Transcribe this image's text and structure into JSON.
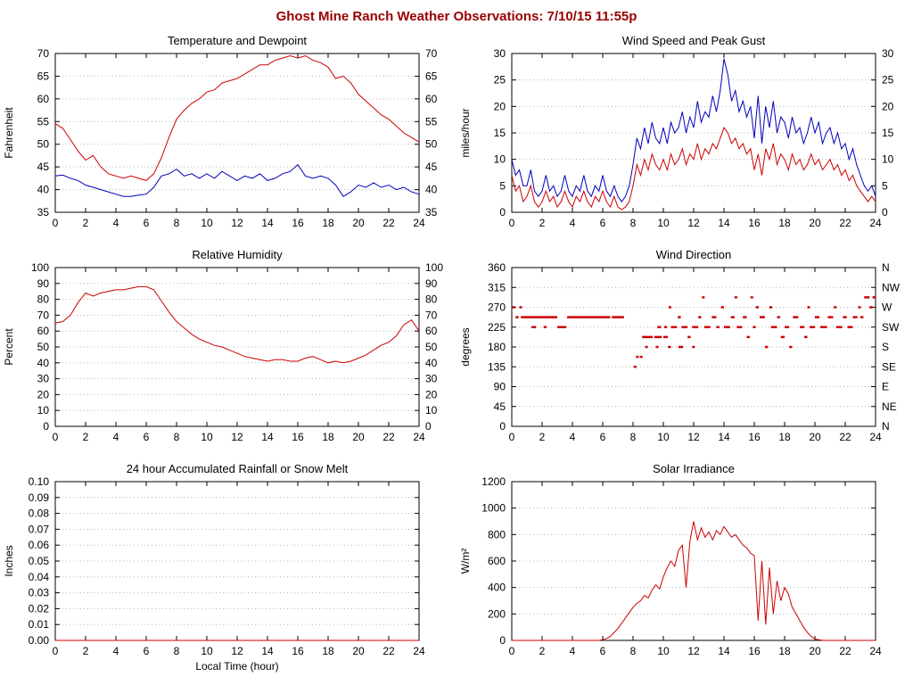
{
  "page": {
    "title": "Ghost Mine Ranch Weather Observations: 7/10/15 11:55p"
  },
  "colors": {
    "series_red": "#cc0000",
    "series_blue": "#0000bb",
    "title_red": "#990000",
    "grid": "#b5b5b5",
    "axis": "#000000",
    "text": "#000000"
  },
  "x_axis": {
    "min": 0,
    "max": 24,
    "tick_step": 2,
    "label": "Local Time (hour)"
  },
  "chart_data": [
    {
      "id": "temperature-dewpoint",
      "type": "line",
      "title": "Temperature and Dewpoint",
      "ylabel": "Fahrenheit",
      "ylim": [
        35,
        70
      ],
      "ytick_step": 5,
      "ytick_decimals": 0,
      "mirror_right_labels": true,
      "show_xlabel": false,
      "series": [
        {
          "name": "temperature",
          "color": "red",
          "x_start": 0,
          "x_step": 0.5,
          "values": [
            54.5,
            53.5,
            51,
            48.5,
            46.5,
            47.5,
            45,
            43.5,
            43,
            42.5,
            43,
            42.5,
            42,
            43.5,
            47,
            51.5,
            55.5,
            57.5,
            59,
            60,
            61.5,
            62,
            63.5,
            64,
            64.5,
            65.5,
            66.5,
            67.5,
            67.5,
            68.5,
            69,
            69.5,
            69,
            69.5,
            68.5,
            68,
            67,
            64.5,
            65,
            63.5,
            61,
            59.5,
            58,
            56.5,
            55.5,
            54,
            52.5,
            51.5,
            50.5
          ]
        },
        {
          "name": "dewpoint",
          "color": "blue",
          "x_start": 0,
          "x_step": 0.5,
          "values": [
            43,
            43.2,
            42.5,
            42,
            41,
            40.5,
            40,
            39.5,
            39,
            38.5,
            38.5,
            38.8,
            39,
            40.5,
            43,
            43.5,
            44.5,
            43,
            43.5,
            42.5,
            43.5,
            42.5,
            44,
            43,
            42,
            43,
            42.5,
            43.5,
            42,
            42.5,
            43.5,
            44,
            45.5,
            43,
            42.5,
            43,
            42.5,
            41,
            38.5,
            39.5,
            41,
            40.5,
            41.5,
            40.5,
            41,
            40,
            40.5,
            39.5,
            39
          ]
        }
      ]
    },
    {
      "id": "wind-speed",
      "type": "line",
      "title": "Wind Speed and Peak Gust",
      "ylabel": "miles/hour",
      "ylim": [
        0,
        30
      ],
      "ytick_step": 5,
      "ytick_decimals": 0,
      "mirror_right_labels": true,
      "show_xlabel": false,
      "series": [
        {
          "name": "peak-gust",
          "color": "blue",
          "x_start": 0,
          "x_step": 0.25,
          "values": [
            10,
            7,
            8,
            5,
            5,
            8,
            4,
            3,
            4,
            7,
            4,
            5,
            3,
            4,
            7,
            4,
            3,
            5,
            4,
            7,
            4,
            3,
            5,
            4,
            7,
            4,
            3,
            5,
            3,
            2,
            3,
            5,
            9,
            14,
            12,
            16,
            13,
            17,
            14,
            13,
            16,
            13,
            17,
            15,
            16,
            19,
            15,
            18,
            16,
            21,
            17,
            19,
            18,
            22,
            19,
            23,
            29,
            26,
            21,
            23,
            19,
            21,
            18,
            20,
            14,
            22,
            13,
            20,
            16,
            21,
            15,
            18,
            17,
            14,
            18,
            15,
            16,
            13,
            15,
            18,
            15,
            17,
            13,
            15,
            16,
            13,
            15,
            12,
            13,
            10,
            12,
            9,
            7,
            5,
            4,
            5,
            3
          ]
        },
        {
          "name": "wind-speed",
          "color": "red",
          "x_start": 0,
          "x_step": 0.25,
          "values": [
            7,
            4,
            5,
            2,
            3,
            5,
            2,
            1,
            2,
            4,
            2,
            3,
            1,
            2,
            4,
            2,
            1,
            3,
            2,
            4,
            2,
            1,
            3,
            2,
            4,
            2,
            1,
            3,
            1,
            0.5,
            1,
            2,
            5,
            9,
            7,
            10,
            8,
            11,
            9,
            8,
            10,
            8,
            11,
            9,
            10,
            12,
            9,
            11,
            10,
            13,
            10,
            12,
            11,
            13,
            12,
            14,
            16,
            15,
            13,
            14,
            12,
            13,
            11,
            12,
            8,
            11,
            7,
            12,
            10,
            13,
            9,
            11,
            10,
            8,
            11,
            9,
            10,
            8,
            9,
            11,
            9,
            10,
            8,
            9,
            10,
            8,
            9,
            7,
            8,
            6,
            7,
            5,
            4,
            3,
            2,
            3,
            2
          ]
        }
      ]
    },
    {
      "id": "humidity",
      "type": "line",
      "title": "Relative Humidity",
      "ylabel": "Percent",
      "ylim": [
        0,
        100
      ],
      "ytick_step": 10,
      "ytick_decimals": 0,
      "mirror_right_labels": true,
      "show_xlabel": false,
      "series": [
        {
          "name": "relative-humidity",
          "color": "red",
          "x_start": 0,
          "x_step": 0.5,
          "values": [
            65,
            66,
            70,
            78,
            84,
            82,
            84,
            85,
            86,
            86,
            87,
            88,
            88,
            86,
            79,
            72,
            66,
            62,
            58,
            55,
            53,
            51,
            50,
            48,
            46,
            44,
            43,
            42,
            41,
            42,
            42,
            41,
            41,
            43,
            44,
            42,
            40,
            41,
            40,
            41,
            43,
            45,
            48,
            51,
            53,
            57,
            64,
            67,
            60
          ]
        }
      ]
    },
    {
      "id": "wind-direction",
      "type": "scatter",
      "title": "Wind Direction",
      "ylabel": "degrees",
      "ylim": [
        0,
        360
      ],
      "ytick_step": 45,
      "ytick_decimals": 0,
      "right_labels": [
        "N",
        "NE",
        "E",
        "SE",
        "S",
        "SW",
        "W",
        "NW",
        "N"
      ],
      "show_xlabel": false,
      "series": [
        {
          "name": "direction",
          "color": "red",
          "segments": [
            [
              0.0,
              0.2,
              270
            ],
            [
              0.25,
              0.45,
              247.5
            ],
            [
              0.5,
              0.6,
              270
            ],
            [
              0.6,
              3.0,
              247.5
            ],
            [
              1.3,
              1.6,
              225
            ],
            [
              2.1,
              2.3,
              225
            ],
            [
              3.0,
              3.6,
              225
            ],
            [
              3.65,
              6.5,
              247.5
            ],
            [
              6.6,
              7.4,
              247.5
            ],
            [
              8.05,
              8.15,
              135
            ],
            [
              8.2,
              8.35,
              157.5
            ],
            [
              8.45,
              8.6,
              157.5
            ],
            [
              8.6,
              9.3,
              202.5
            ],
            [
              8.8,
              8.9,
              180
            ],
            [
              9.4,
              9.9,
              202.5
            ],
            [
              9.5,
              9.6,
              180
            ],
            [
              9.6,
              9.85,
              225
            ],
            [
              10.0,
              10.3,
              202.5
            ],
            [
              10.05,
              10.25,
              225
            ],
            [
              10.3,
              10.5,
              180
            ],
            [
              10.35,
              10.45,
              270
            ],
            [
              10.5,
              10.9,
              225
            ],
            [
              10.95,
              11.15,
              247.5
            ],
            [
              11.0,
              11.3,
              180
            ],
            [
              11.2,
              11.6,
              225
            ],
            [
              11.6,
              11.8,
              202.5
            ],
            [
              11.9,
              12.0,
              180
            ],
            [
              11.9,
              12.3,
              225
            ],
            [
              12.3,
              12.5,
              247.5
            ],
            [
              12.55,
              12.65,
              292.5
            ],
            [
              12.7,
              13.1,
              225
            ],
            [
              13.2,
              13.5,
              247.5
            ],
            [
              13.5,
              13.7,
              225
            ],
            [
              13.8,
              14.0,
              270
            ],
            [
              14.0,
              14.4,
              225
            ],
            [
              14.45,
              14.7,
              247.5
            ],
            [
              14.7,
              14.8,
              292.5
            ],
            [
              14.85,
              15.2,
              225
            ],
            [
              15.25,
              15.5,
              247.5
            ],
            [
              15.5,
              15.7,
              202.5
            ],
            [
              15.75,
              15.85,
              292.5
            ],
            [
              15.9,
              16.1,
              225
            ],
            [
              16.1,
              16.3,
              270
            ],
            [
              16.35,
              16.7,
              247.5
            ],
            [
              16.7,
              16.9,
              180
            ],
            [
              17.0,
              17.1,
              270
            ],
            [
              17.1,
              17.5,
              225
            ],
            [
              17.5,
              17.7,
              247.5
            ],
            [
              17.75,
              18.0,
              202.5
            ],
            [
              18.0,
              18.3,
              225
            ],
            [
              18.3,
              18.5,
              180
            ],
            [
              18.55,
              18.9,
              247.5
            ],
            [
              19.0,
              19.3,
              225
            ],
            [
              19.3,
              19.5,
              202.5
            ],
            [
              19.5,
              19.6,
              270
            ],
            [
              19.65,
              20.0,
              225
            ],
            [
              20.0,
              20.3,
              247.5
            ],
            [
              20.35,
              20.8,
              225
            ],
            [
              20.85,
              21.2,
              247.5
            ],
            [
              21.25,
              21.35,
              270
            ],
            [
              21.4,
              21.8,
              225
            ],
            [
              21.85,
              22.1,
              247.5
            ],
            [
              22.15,
              22.5,
              225
            ],
            [
              22.5,
              22.8,
              247.5
            ],
            [
              22.85,
              23.0,
              270
            ],
            [
              23.0,
              23.2,
              247.5
            ],
            [
              23.25,
              23.6,
              292.5
            ],
            [
              23.6,
              23.8,
              270
            ],
            [
              23.8,
              24.0,
              292.5
            ]
          ]
        }
      ]
    },
    {
      "id": "rainfall",
      "type": "line",
      "title": "24 hour Accumulated Rainfall or Snow Melt",
      "ylabel": "Inches",
      "ylim": [
        0,
        0.1
      ],
      "ytick_step": 0.01,
      "ytick_decimals": 2,
      "show_xlabel": true,
      "series": [
        {
          "name": "rainfall",
          "color": "red",
          "x_start": 0,
          "x_step": 24,
          "values": [
            0,
            0
          ]
        }
      ]
    },
    {
      "id": "solar",
      "type": "line",
      "title": "Solar Irradiance",
      "ylabel": "W/m²",
      "ylim": [
        0,
        1200
      ],
      "ytick_step": 200,
      "ytick_decimals": 0,
      "show_xlabel": false,
      "series": [
        {
          "name": "irradiance",
          "color": "red",
          "x_start": 0,
          "x_step": 0.25,
          "values": [
            0,
            0,
            0,
            0,
            0,
            0,
            0,
            0,
            0,
            0,
            0,
            0,
            0,
            0,
            0,
            0,
            0,
            0,
            0,
            0,
            0,
            0,
            0,
            0,
            5,
            15,
            30,
            60,
            90,
            130,
            170,
            210,
            250,
            280,
            300,
            340,
            320,
            380,
            420,
            390,
            480,
            550,
            600,
            560,
            680,
            720,
            400,
            750,
            900,
            760,
            850,
            780,
            820,
            760,
            830,
            800,
            860,
            820,
            780,
            800,
            760,
            720,
            700,
            660,
            640,
            150,
            600,
            120,
            550,
            200,
            450,
            300,
            400,
            350,
            250,
            200,
            150,
            100,
            60,
            30,
            10,
            5,
            0,
            0,
            0,
            0,
            0,
            0,
            0,
            0,
            0,
            0,
            0,
            0,
            0,
            0,
            0
          ]
        }
      ]
    }
  ]
}
